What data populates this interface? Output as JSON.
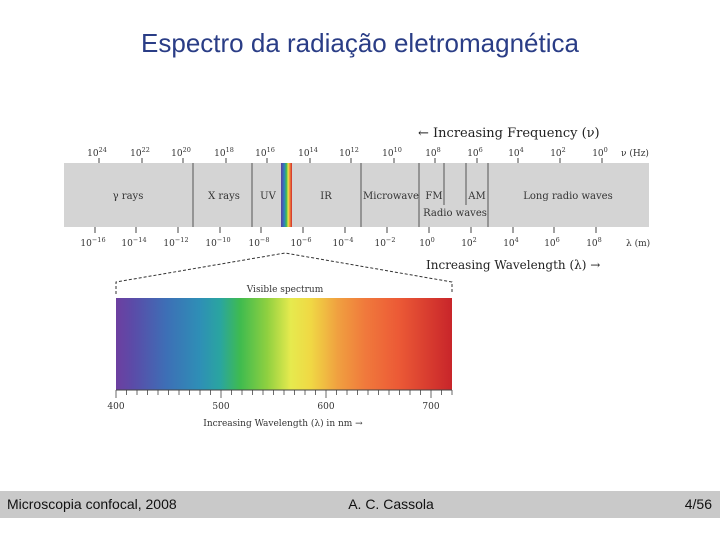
{
  "slide": {
    "title": "Espectro da radiação eletromagnética"
  },
  "spectrum": {
    "frequency_axis_label": "← Increasing Frequency (ν)",
    "frequency_unit_label": "ν (Hz)",
    "frequency_ticks": [
      {
        "base": "10",
        "exp": "24"
      },
      {
        "base": "10",
        "exp": "22"
      },
      {
        "base": "10",
        "exp": "20"
      },
      {
        "base": "10",
        "exp": "18"
      },
      {
        "base": "10",
        "exp": "16"
      },
      {
        "base": "10",
        "exp": "14"
      },
      {
        "base": "10",
        "exp": "12"
      },
      {
        "base": "10",
        "exp": "10"
      },
      {
        "base": "10",
        "exp": "8"
      },
      {
        "base": "10",
        "exp": "6"
      },
      {
        "base": "10",
        "exp": "4"
      },
      {
        "base": "10",
        "exp": "2"
      },
      {
        "base": "10",
        "exp": "0"
      }
    ],
    "wavelength_axis_label": "Increasing Wavelength (λ) →",
    "wavelength_unit_label": "λ (m)",
    "wavelength_ticks": [
      {
        "base": "10",
        "exp": "−16"
      },
      {
        "base": "10",
        "exp": "−14"
      },
      {
        "base": "10",
        "exp": "−12"
      },
      {
        "base": "10",
        "exp": "−10"
      },
      {
        "base": "10",
        "exp": "−8"
      },
      {
        "base": "10",
        "exp": "−6"
      },
      {
        "base": "10",
        "exp": "−4"
      },
      {
        "base": "10",
        "exp": "−2"
      },
      {
        "base": "10",
        "exp": "0"
      },
      {
        "base": "10",
        "exp": "2"
      },
      {
        "base": "10",
        "exp": "4"
      },
      {
        "base": "10",
        "exp": "6"
      },
      {
        "base": "10",
        "exp": "8"
      }
    ],
    "regions": {
      "gamma": "γ rays",
      "xrays": "X rays",
      "uv": "UV",
      "ir": "IR",
      "microwave": "Microwave",
      "fm": "FM",
      "am": "AM",
      "long_radio": "Long radio waves",
      "radio_waves": "Radio waves"
    }
  },
  "visible": {
    "title": "Visible spectrum",
    "ticks": [
      "400",
      "500",
      "600",
      "700"
    ],
    "axis_label": "Increasing Wavelength (λ) in nm →"
  },
  "footer": {
    "left": "Microscopia confocal, 2008",
    "center": "A. C. Cassola",
    "right": "4/56"
  }
}
